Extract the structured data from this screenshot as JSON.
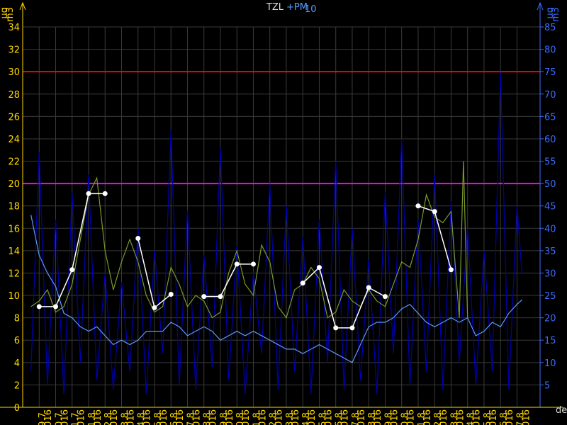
{
  "chart_data": {
    "type": "line",
    "title": "TZL",
    "title_extra": "+PM",
    "title_sub": "10",
    "y_unit_top": "µg",
    "y_unit_bottom": "m3",
    "x_unit": "den",
    "x_year": "2016",
    "xlim": [
      -1,
      30.4
    ],
    "ylim": [
      0,
      34
    ],
    "y2lim": [
      0,
      85
    ],
    "yticks": [
      0,
      2,
      4,
      6,
      8,
      10,
      12,
      14,
      16,
      18,
      20,
      22,
      24,
      26,
      28,
      30,
      32,
      34
    ],
    "y2ticks": [
      5,
      10,
      15,
      20,
      25,
      30,
      35,
      40,
      45,
      50,
      55,
      60,
      65,
      70,
      75,
      80,
      85
    ],
    "xticks": [
      {
        "value": 0,
        "label": "29.7."
      },
      {
        "value": 1,
        "label": "30.7."
      },
      {
        "value": 2,
        "label": "31.7."
      },
      {
        "value": 3,
        "label": "1.8."
      },
      {
        "value": 4,
        "label": "2.8."
      },
      {
        "value": 5,
        "label": "3.8."
      },
      {
        "value": 6,
        "label": "4.8."
      },
      {
        "value": 7,
        "label": "5.8."
      },
      {
        "value": 8,
        "label": "6.8."
      },
      {
        "value": 9,
        "label": "7.8."
      },
      {
        "value": 10,
        "label": "8.8."
      },
      {
        "value": 11,
        "label": "9.8."
      },
      {
        "value": 12,
        "label": "10.8."
      },
      {
        "value": 13,
        "label": "11.8."
      },
      {
        "value": 14,
        "label": "12.8."
      },
      {
        "value": 15,
        "label": "13.8."
      },
      {
        "value": 16,
        "label": "14.8."
      },
      {
        "value": 17,
        "label": "15.8."
      },
      {
        "value": 18,
        "label": "16.8."
      },
      {
        "value": 19,
        "label": "17.8."
      },
      {
        "value": 20,
        "label": "18.8."
      },
      {
        "value": 21,
        "label": "19.8."
      },
      {
        "value": 22,
        "label": "20.8."
      },
      {
        "value": 23,
        "label": "21.8."
      },
      {
        "value": 24,
        "label": "22.8."
      },
      {
        "value": 25,
        "label": "23.8."
      },
      {
        "value": 26,
        "label": "24.8."
      },
      {
        "value": 27,
        "label": "25.8."
      },
      {
        "value": 28,
        "label": "26.8."
      },
      {
        "value": 29,
        "label": "27.8."
      }
    ],
    "grid": true,
    "thresholds": [
      {
        "value": 30,
        "color": "#ff0000"
      },
      {
        "value": 20,
        "color": "#ff00ff"
      }
    ],
    "series": [
      {
        "color": "#0000b0",
        "axis": "y2",
        "style": "line",
        "x": [
          -0.5,
          0,
          0.5,
          1,
          1.5,
          2,
          2.5,
          3,
          3.5,
          4,
          4.5,
          5,
          5.5,
          6,
          6.5,
          7,
          7.5,
          8,
          8.5,
          9,
          9.5,
          10,
          10.5,
          11,
          11.5,
          12,
          12.5,
          13,
          13.5,
          14,
          14.5,
          15,
          15.5,
          16,
          16.5,
          17,
          17.5,
          18,
          18.5,
          19,
          19.5,
          20,
          20.5,
          21,
          21.5,
          22,
          22.5,
          23,
          23.5,
          24,
          24.5,
          25,
          25.5,
          26,
          26.5,
          27,
          27.5,
          28,
          28.5,
          29,
          29.3
        ],
        "values": [
          8,
          57,
          5,
          42,
          3,
          48,
          10,
          52,
          6,
          30,
          4,
          28,
          8,
          40,
          3,
          35,
          12,
          62,
          5,
          44,
          4,
          34,
          9,
          58,
          6,
          36,
          3,
          30,
          12,
          50,
          4,
          45,
          8,
          38,
          3,
          42,
          10,
          55,
          4,
          40,
          6,
          33,
          3,
          48,
          12,
          60,
          5,
          42,
          8,
          52,
          4,
          46,
          10,
          40,
          5,
          35,
          8,
          75,
          4,
          45,
          30
        ]
      },
      {
        "color": "#5a9bff",
        "axis": "y2",
        "style": "line",
        "x": [
          -0.5,
          0,
          0.5,
          1,
          1.5,
          2,
          2.5,
          3,
          3.5,
          4,
          4.5,
          5,
          5.5,
          6,
          6.5,
          7,
          7.5,
          8,
          8.5,
          9,
          9.5,
          10,
          10.5,
          11,
          11.5,
          12,
          12.5,
          13,
          13.5,
          14,
          14.5,
          15,
          15.5,
          16,
          16.5,
          17,
          17.5,
          18,
          18.5,
          19,
          19.5,
          20,
          20.5,
          21,
          21.5,
          22,
          22.5,
          23,
          23.5,
          24,
          24.5,
          25,
          25.5,
          26,
          26.5,
          27,
          27.5,
          28,
          28.5,
          29,
          29.3
        ],
        "values": [
          43,
          34,
          30,
          27,
          21,
          20,
          18,
          17,
          18,
          16,
          14,
          15,
          14,
          15,
          17,
          17,
          17,
          19,
          18,
          16,
          17,
          18,
          17,
          15,
          16,
          17,
          16,
          17,
          16,
          15,
          14,
          13,
          13,
          12,
          13,
          14,
          13,
          12,
          11,
          10,
          14,
          18,
          19,
          19,
          20,
          22,
          23,
          21,
          19,
          18,
          19,
          20,
          19,
          20,
          16,
          17,
          19,
          18,
          21,
          23,
          24
        ]
      },
      {
        "color": "#7a9a2a",
        "axis": "y",
        "style": "line",
        "x": [
          -0.5,
          0,
          0.5,
          1,
          1.5,
          2,
          2.5,
          3,
          3.5,
          4,
          4.5,
          5,
          5.5,
          6,
          6.5,
          7,
          7.5,
          8,
          8.5,
          9,
          9.5,
          10,
          10.5,
          11,
          11.5,
          12,
          12.5,
          13,
          13.5,
          14,
          14.5,
          15,
          15.5,
          16,
          16.5,
          17,
          17.5,
          18,
          18.5,
          19,
          19.5,
          20,
          20.5,
          21,
          21.5,
          22,
          22.5,
          23,
          23.5,
          24,
          24.5,
          25,
          25.5,
          25.75,
          26
        ],
        "values": [
          9,
          9.5,
          10.5,
          8.5,
          9,
          11,
          15,
          19,
          20.5,
          14,
          10.5,
          13,
          15,
          13,
          10,
          8.5,
          9,
          12.5,
          11,
          9,
          10,
          9.5,
          8,
          8.5,
          12,
          14,
          11,
          10,
          14.5,
          13,
          9,
          8,
          10.5,
          11,
          12.5,
          11.5,
          8,
          8.5,
          10.5,
          9.5,
          9,
          10.5,
          9.5,
          9,
          11,
          13,
          12.5,
          15,
          19,
          17,
          16.5,
          17.5,
          8,
          22,
          8
        ]
      },
      {
        "color": "#ffffff",
        "axis": "y",
        "style": "dots",
        "x": [
          0,
          1,
          2,
          3,
          4,
          5,
          6,
          7,
          8,
          9,
          10,
          11,
          12,
          13,
          14,
          15,
          16,
          17,
          18,
          19,
          20,
          21,
          22,
          23,
          24,
          25
        ],
        "values": [
          9.0,
          9.0,
          12.3,
          19.1,
          19.1,
          null,
          15.1,
          8.9,
          10.1,
          null,
          9.9,
          9.9,
          12.8,
          12.8,
          null,
          null,
          11.1,
          12.5,
          7.1,
          7.1,
          10.7,
          9.9,
          null,
          18.0,
          17.5,
          12.3
        ]
      }
    ]
  }
}
